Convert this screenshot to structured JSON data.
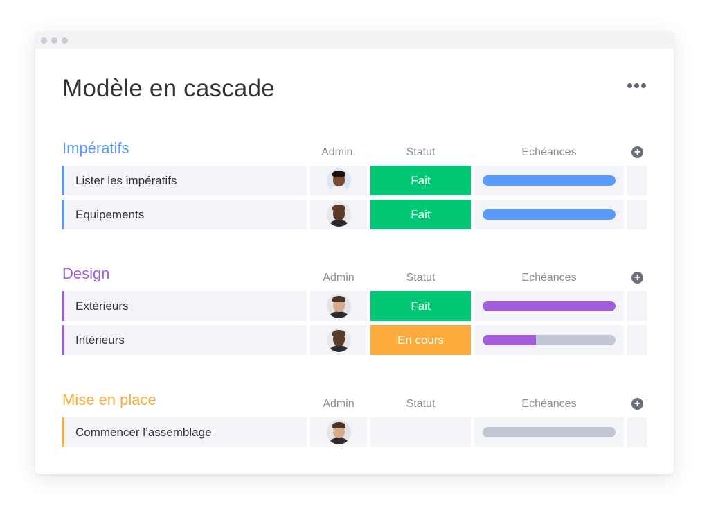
{
  "page": {
    "title": "Modèle en cascade"
  },
  "groups": [
    {
      "title": "Impératifs",
      "color": "#579bfc",
      "headers": {
        "admin": "Admin.",
        "status": "Statut",
        "deadlines": "Echéances"
      },
      "rows": [
        {
          "name": "Lister les impératifs",
          "avatar": "avatar-woman-glasses",
          "status": "Fait",
          "status_color": "#00c875",
          "progress": 1.0
        },
        {
          "name": "Equipements",
          "avatar": "avatar-man-bald",
          "status": "Fait",
          "status_color": "#00c875",
          "progress": 1.0
        }
      ]
    },
    {
      "title": "Design",
      "color": "#a25ddc",
      "headers": {
        "admin": "Admin",
        "status": "Statut",
        "deadlines": "Echéances"
      },
      "rows": [
        {
          "name": "Extèrieurs",
          "avatar": "avatar-man-beard",
          "status": "Fait",
          "status_color": "#00c875",
          "progress": 1.0
        },
        {
          "name": "Intérieurs",
          "avatar": "avatar-man-bald",
          "status": "En cours",
          "status_color": "#fdab3d",
          "progress": 0.4
        }
      ]
    },
    {
      "title": "Mise en place",
      "color": "#fdab3d",
      "headers": {
        "admin": "Admin",
        "status": "Statut",
        "deadlines": "Echéances"
      },
      "rows": [
        {
          "name": "Commencer l’assemblage",
          "avatar": "avatar-man-beard",
          "status": "",
          "status_color": "",
          "progress": 0.0
        }
      ]
    }
  ],
  "colors": {
    "progress_track": "#c3c6d4",
    "row_background": "#f3f4f7"
  }
}
